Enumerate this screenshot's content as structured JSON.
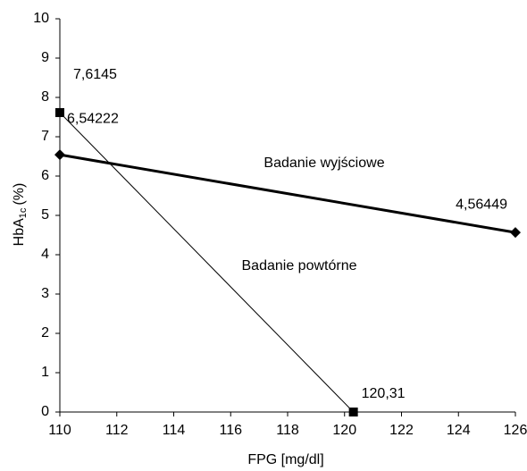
{
  "chart_data": {
    "type": "line",
    "xlabel": "FPG [mg/dl]",
    "ylabel": [
      "HbA",
      "1c",
      "(%)"
    ],
    "xlim": [
      110,
      126
    ],
    "xticks": [
      110,
      112,
      114,
      116,
      118,
      120,
      122,
      124,
      126
    ],
    "ylim": [
      0,
      10
    ],
    "yticks": [
      0,
      1,
      2,
      3,
      4,
      5,
      6,
      7,
      8,
      9,
      10
    ],
    "grid": false,
    "series": [
      {
        "name": "Badanie wyjściowe",
        "color": "#000000",
        "marker": "diamond",
        "line_width": 3,
        "x": [
          110,
          126
        ],
        "values": [
          6.54222,
          4.56449
        ],
        "value_labels": [
          "6,54222",
          "4,56449"
        ]
      },
      {
        "name": "Badanie powtórne",
        "color": "#000000",
        "marker": "square",
        "line_width": 1,
        "x": [
          110,
          120.31
        ],
        "values": [
          7.6145,
          0
        ],
        "value_labels": [
          "7,6145",
          null
        ],
        "x_labels": [
          null,
          "120,31"
        ]
      }
    ]
  }
}
